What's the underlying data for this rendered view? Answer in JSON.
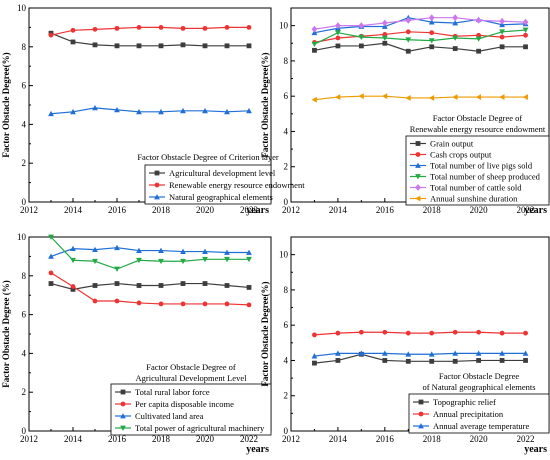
{
  "chart_data": [
    {
      "type": "line",
      "ylabel": "Factor Obstacle Degree(%)",
      "xlabel": "years",
      "xlim": [
        2012,
        2023
      ],
      "ylim": [
        0,
        10
      ],
      "xticks": [
        2012,
        2014,
        2016,
        2018,
        2020,
        2022
      ],
      "yticks": [
        0,
        2,
        4,
        6,
        8,
        10
      ],
      "legend_title": [
        "Factor Obstacle Degree of Criterion layer"
      ],
      "legend_position": "bottom-right",
      "x": [
        2013,
        2014,
        2015,
        2016,
        2017,
        2018,
        2019,
        2020,
        2021,
        2022
      ],
      "series": [
        {
          "name": "Agricultural development level",
          "color": "#3d3d3d",
          "marker": "square",
          "values": [
            8.7,
            8.25,
            8.1,
            8.05,
            8.05,
            8.05,
            8.1,
            8.05,
            8.05,
            8.05
          ]
        },
        {
          "name": "Renewable energy resource endowment",
          "color": "#ee3333",
          "marker": "circle",
          "values": [
            8.6,
            8.85,
            8.9,
            8.95,
            9.0,
            9.0,
            8.95,
            8.95,
            9.0,
            9.0
          ]
        },
        {
          "name": "Natural geographical elements",
          "color": "#1f6fd6",
          "marker": "triangle",
          "values": [
            4.55,
            4.65,
            4.85,
            4.75,
            4.65,
            4.65,
            4.7,
            4.7,
            4.65,
            4.7
          ]
        }
      ]
    },
    {
      "type": "line",
      "ylabel": "Factor Obstacle Degree(%)",
      "xlabel": "years",
      "xlim": [
        2012,
        2023
      ],
      "ylim": [
        0,
        11
      ],
      "xticks": [
        2012,
        2014,
        2016,
        2018,
        2020,
        2022
      ],
      "yticks": [
        0,
        2,
        4,
        6,
        8,
        10
      ],
      "legend_title": [
        "Factor Obstacle Degree of",
        "Renewable energy resource endowment"
      ],
      "legend_position": "bottom-right",
      "x": [
        2013,
        2014,
        2015,
        2016,
        2017,
        2018,
        2019,
        2020,
        2021,
        2022
      ],
      "series": [
        {
          "name": "Grain output",
          "color": "#3d3d3d",
          "marker": "square",
          "values": [
            8.6,
            8.85,
            8.85,
            9.0,
            8.55,
            8.8,
            8.7,
            8.55,
            8.8,
            8.8
          ]
        },
        {
          "name": "Cash crops output",
          "color": "#ee3333",
          "marker": "circle",
          "values": [
            9.05,
            9.3,
            9.4,
            9.5,
            9.65,
            9.6,
            9.4,
            9.45,
            9.35,
            9.45
          ]
        },
        {
          "name": "Total number of live pigs sold",
          "color": "#1f6fd6",
          "marker": "triangle",
          "values": [
            9.6,
            9.85,
            9.95,
            9.95,
            10.45,
            10.2,
            10.15,
            10.35,
            10.05,
            10.1
          ]
        },
        {
          "name": "Total number of sheep produced",
          "color": "#22aa44",
          "marker": "triangle-down",
          "values": [
            8.95,
            9.6,
            9.35,
            9.3,
            9.2,
            9.15,
            9.3,
            9.25,
            9.65,
            9.75
          ]
        },
        {
          "name": "Total number of cattle sold",
          "color": "#cc77ee",
          "marker": "diamond",
          "values": [
            9.8,
            10.0,
            10.0,
            10.15,
            10.3,
            10.45,
            10.45,
            10.3,
            10.25,
            10.2
          ]
        },
        {
          "name": "Annual sunshine duration",
          "color": "#ee9a00",
          "marker": "tri-left",
          "values": [
            5.8,
            5.95,
            6.0,
            6.0,
            5.9,
            5.9,
            5.95,
            5.95,
            5.95,
            5.95
          ]
        }
      ]
    },
    {
      "type": "line",
      "ylabel": "Factor Obstacle Degree (%)",
      "xlabel": "years",
      "xlim": [
        2012,
        2023
      ],
      "ylim": [
        0,
        10
      ],
      "xticks": [
        2012,
        2014,
        2016,
        2018,
        2020,
        2022
      ],
      "yticks": [
        0,
        2,
        4,
        6,
        8,
        10
      ],
      "legend_title": [
        "Factor Obstacle Degree of",
        "Agricultural Development Level"
      ],
      "legend_position": "bottom-right",
      "x": [
        2013,
        2014,
        2015,
        2016,
        2017,
        2018,
        2019,
        2020,
        2021,
        2022
      ],
      "series": [
        {
          "name": "Total rural labor force",
          "color": "#3d3d3d",
          "marker": "square",
          "values": [
            7.6,
            7.3,
            7.5,
            7.6,
            7.5,
            7.5,
            7.6,
            7.6,
            7.5,
            7.4
          ]
        },
        {
          "name": "Per capita disposable income",
          "color": "#ee3333",
          "marker": "circle",
          "values": [
            8.15,
            7.45,
            6.7,
            6.7,
            6.6,
            6.55,
            6.55,
            6.55,
            6.55,
            6.5
          ]
        },
        {
          "name": "Cultivated land area",
          "color": "#1f6fd6",
          "marker": "triangle",
          "values": [
            9.0,
            9.4,
            9.35,
            9.45,
            9.3,
            9.3,
            9.25,
            9.25,
            9.2,
            9.2
          ]
        },
        {
          "name": "Total power of agricultural machinery",
          "color": "#22aa44",
          "marker": "triangle-down",
          "values": [
            10.0,
            8.8,
            8.75,
            8.35,
            8.8,
            8.75,
            8.75,
            8.85,
            8.85,
            8.85
          ]
        }
      ]
    },
    {
      "type": "line",
      "ylabel": "Factor Obstacle Degree(%)",
      "xlabel": "years",
      "xlim": [
        2012,
        2023
      ],
      "ylim": [
        0,
        11
      ],
      "xticks": [
        2012,
        2014,
        2016,
        2018,
        2020,
        2022
      ],
      "yticks": [
        0,
        2,
        4,
        6,
        8,
        10
      ],
      "legend_title": [
        "Factor Obstacle Degree",
        "of Natural geographical elements"
      ],
      "legend_position": "bottom-right",
      "x": [
        2013,
        2014,
        2015,
        2016,
        2017,
        2018,
        2019,
        2020,
        2021,
        2022
      ],
      "series": [
        {
          "name": "Topographic relief",
          "color": "#3d3d3d",
          "marker": "square",
          "values": [
            3.85,
            4.0,
            4.35,
            4.0,
            3.95,
            3.95,
            3.95,
            4.0,
            4.0,
            4.0
          ]
        },
        {
          "name": "Annual precipitation",
          "color": "#ee3333",
          "marker": "circle",
          "values": [
            5.45,
            5.55,
            5.6,
            5.6,
            5.55,
            5.55,
            5.6,
            5.6,
            5.55,
            5.55
          ]
        },
        {
          "name": "Annual average temperature",
          "color": "#1f6fd6",
          "marker": "triangle",
          "values": [
            4.25,
            4.4,
            4.4,
            4.4,
            4.35,
            4.35,
            4.4,
            4.4,
            4.4,
            4.4
          ]
        }
      ]
    }
  ]
}
